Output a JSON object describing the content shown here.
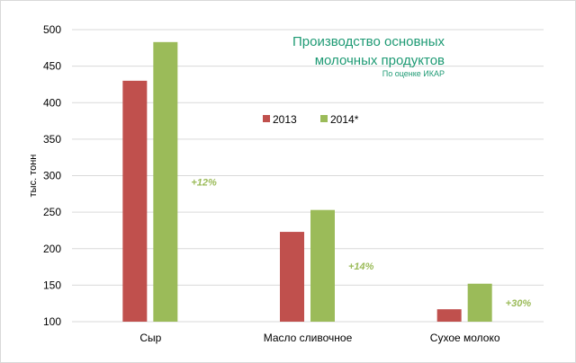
{
  "chart_data": {
    "type": "bar",
    "title": "Производство основных молочных продуктов",
    "subtitle": "По оценке ИКАР",
    "ylabel": "тыс. тонн",
    "xlabel": "",
    "ylim": [
      100,
      500
    ],
    "yticks": [
      100,
      150,
      200,
      250,
      300,
      350,
      400,
      450,
      500
    ],
    "grid": true,
    "legend_position": "top-center",
    "categories": [
      "Сыр",
      "Масло сливочное",
      "Сухое молоко"
    ],
    "series": [
      {
        "name": "2013",
        "color": "#c0504d",
        "values": [
          430,
          223,
          117
        ]
      },
      {
        "name": "2014*",
        "color": "#9bbb59",
        "values": [
          483,
          253,
          152
        ]
      }
    ],
    "annotations": [
      "+12%",
      "+14%",
      "+30%"
    ],
    "annotation_color": "#9bbb59"
  }
}
